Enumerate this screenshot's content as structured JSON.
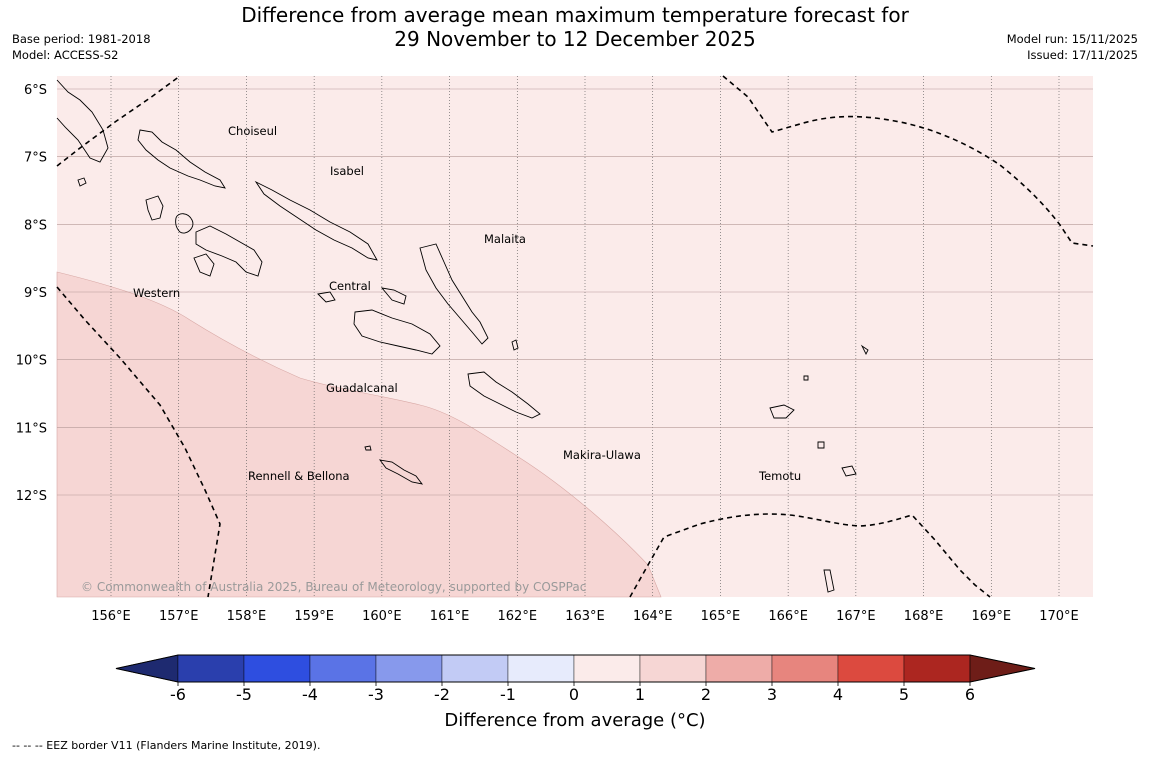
{
  "title": {
    "line1": "Difference from average mean maximum temperature forecast for",
    "line2": "29 November to 12 December 2025"
  },
  "meta_left": {
    "base_period": "Base period: 1981-2018",
    "model": "Model: ACCESS-S2"
  },
  "meta_right": {
    "model_run": "Model run: 15/11/2025",
    "issued": "Issued: 17/11/2025"
  },
  "map": {
    "lat_labels": [
      "6°S",
      "7°S",
      "8°S",
      "9°S",
      "10°S",
      "11°S",
      "12°S"
    ],
    "lon_labels": [
      "156°E",
      "157°E",
      "158°E",
      "159°E",
      "160°E",
      "161°E",
      "162°E",
      "163°E",
      "164°E",
      "165°E",
      "166°E",
      "167°E",
      "168°E",
      "169°E",
      "170°E"
    ],
    "lat_values": [
      -6,
      -7,
      -8,
      -9,
      -10,
      -11,
      -12
    ],
    "lon_values": [
      156,
      157,
      158,
      159,
      160,
      161,
      162,
      163,
      164,
      165,
      166,
      167,
      168,
      169,
      170
    ],
    "region_labels": {
      "choiseul": "Choiseul",
      "isabel": "Isabel",
      "malaita": "Malaita",
      "western": "Western",
      "central": "Central",
      "guadalcanal": "Guadalcanal",
      "makira_ulawa": "Makira-Ulawa",
      "rennell_bellona": "Rennell & Bellona",
      "temotu": "Temotu"
    },
    "anomaly_classes": [
      {
        "range": "0 to 1",
        "color": "#fbebea"
      },
      {
        "range": "1 to 2",
        "color": "#f6d6d4"
      }
    ],
    "copyright": "© Commonwealth of Australia 2025, Bureau of Meteorology, supported by COSPPac"
  },
  "colorbar": {
    "ticks": [
      "-6",
      "-5",
      "-4",
      "-3",
      "-2",
      "-1",
      "0",
      "1",
      "2",
      "3",
      "4",
      "5",
      "6"
    ],
    "under_color": "#1e2a70",
    "over_color": "#6e1d18",
    "colors": [
      "#2a3fad",
      "#2e4ee0",
      "#5a73e6",
      "#8799ec",
      "#c2cbf5",
      "#e7ebfc",
      "#fbebea",
      "#f6d6d4",
      "#eeaca8",
      "#e7857e",
      "#dc4a3f",
      "#ac2620"
    ],
    "label": "Difference from average (°C)"
  },
  "eez_note": "--  --  -- EEZ border V11 (Flanders Marine Institute, 2019)."
}
